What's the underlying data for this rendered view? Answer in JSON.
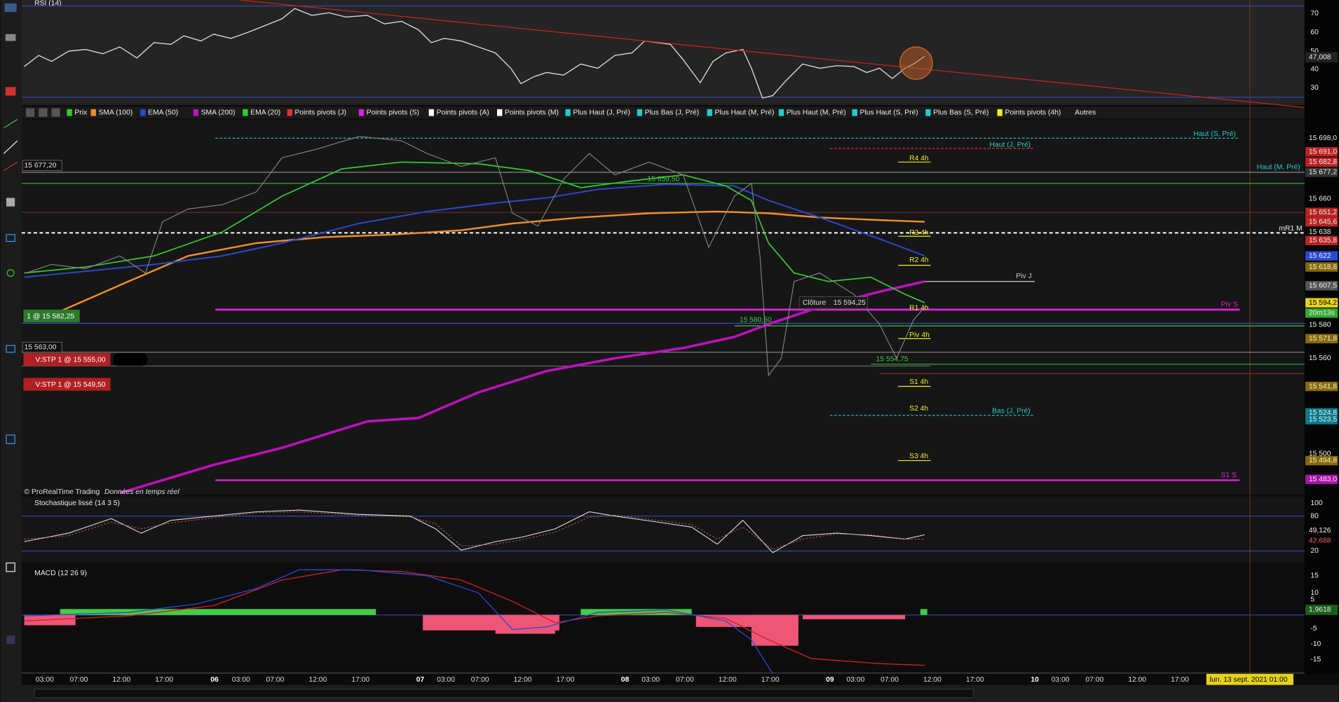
{
  "rsi": {
    "title": "RSI (14)",
    "ticks": [
      "70",
      "60",
      "50",
      "40",
      "30"
    ],
    "value": "47,008"
  },
  "toolbar": {
    "items": [
      "Prix",
      "SMA (100)",
      "EMA (50)",
      "SMA (200)",
      "EMA (20)",
      "Points pivots (J)",
      "Points pivots (S)",
      "Points pivots (A)",
      "Points pivots (M)",
      "Plus Haut (J, Pré)",
      "Plus Bas (J, Pré)",
      "Plus Haut (M, Pré)",
      "Plus Haut (M, Pré)",
      "Plus Haut (S, Pré)",
      "Plus Bas (S, Pré)",
      "Points pivots (4h)",
      "Autres"
    ]
  },
  "price": {
    "axis": [
      "15 698,0",
      "15 691,0",
      "15 682,8",
      "15 677,2",
      "15 660",
      "15 651,2",
      "15 645,6",
      "15 638",
      "15 635,8",
      "15 622",
      "15 618,8",
      "15 607,5",
      "15 594,2",
      "20m13s",
      "15 580",
      "15 571,8",
      "15 560",
      "15 541,8",
      "15 524,8",
      "15 523,5",
      "15 500",
      "15 494,8",
      "15 483,0"
    ],
    "levels": [
      "Haut (S, Pré)",
      "Haut (J, Pré)",
      "R4 4h",
      "Haut (M, Pré)",
      "mR1 M",
      "R3 4h",
      "R2 4h",
      "Piv J",
      "Piv S",
      "R1 4h",
      "Piv 4h",
      "S1 4h",
      "S2 4h",
      "Bas (J, Pré)",
      "S3 4h",
      "S1 S"
    ],
    "left_labels": [
      "15 677,20",
      "15 563,00"
    ],
    "orders": [
      "1 @ 15 582,25",
      "V:STP 1 @ 15 555,00",
      "V:STP 1 @ 15 549,50"
    ],
    "close_label": "Clôture",
    "close_value": "15 594,25",
    "inline": [
      "15 580,50",
      "15 554,75",
      "15 659,50"
    ],
    "credit": "© ProRealTime Trading",
    "credit_note": "Données en temps réel"
  },
  "stoch": {
    "title": "Stochastique lissé (14 3 5)",
    "ticks": [
      "100",
      "80",
      "20"
    ],
    "values": [
      "49,126",
      "42,688"
    ]
  },
  "macd": {
    "title": "MACD (12 26 9)",
    "ticks": [
      "15",
      "10",
      "5",
      "-5",
      "-10",
      "-15"
    ],
    "value": "1,9618"
  },
  "time_axis": {
    "labels": [
      "03:00",
      "07:00",
      "12:00",
      "17:00",
      "06",
      "03:00",
      "07:00",
      "12:00",
      "17:00",
      "07",
      "03:00",
      "07:00",
      "12:00",
      "17:00",
      "08",
      "03:00",
      "07:00",
      "12:00",
      "17:00",
      "09",
      "03:00",
      "07:00",
      "12:00",
      "17:00",
      "10",
      "03:00",
      "07:00",
      "12:00",
      "17:00"
    ],
    "cursor": "lun. 13 sept. 2021 01:00"
  }
}
